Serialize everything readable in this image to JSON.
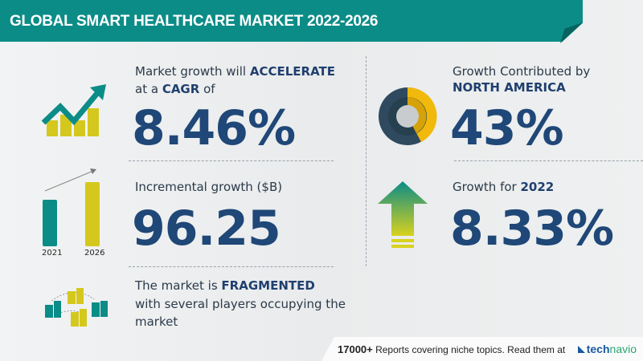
{
  "header": {
    "title": "GLOBAL SMART HEALTHCARE MARKET 2022-2026"
  },
  "cagr": {
    "line1": "Market growth will ",
    "line1_bold": "ACCELERATE",
    "line2": "at a ",
    "line2_bold": "CAGR",
    "line2_end": " of",
    "value": "8.46%"
  },
  "incremental": {
    "label": "Incremental growth ($B)",
    "value": "96.25",
    "years": [
      "2021",
      "2026"
    ]
  },
  "fragmented": {
    "line1": "The market is ",
    "line1_bold": "FRAGMENTED",
    "line2": "with several players occupying the",
    "line3": "market"
  },
  "region": {
    "label": "Growth Contributed by",
    "region": "NORTH AMERICA",
    "value": "43%",
    "share": 0.43
  },
  "yoy": {
    "label": "Growth for ",
    "year": "2022",
    "value": "8.33%"
  },
  "footer": {
    "count": "17000+",
    "text": "Reports covering niche topics. Read them at",
    "logo_bold": "tech",
    "logo_rest": "navio"
  },
  "colors": {
    "teal": "#0b8c87",
    "navy": "#1f4777",
    "yellow": "#d4c81e",
    "donut_dark": "#2f4a5e",
    "donut_yellow": "#f0b90b"
  }
}
